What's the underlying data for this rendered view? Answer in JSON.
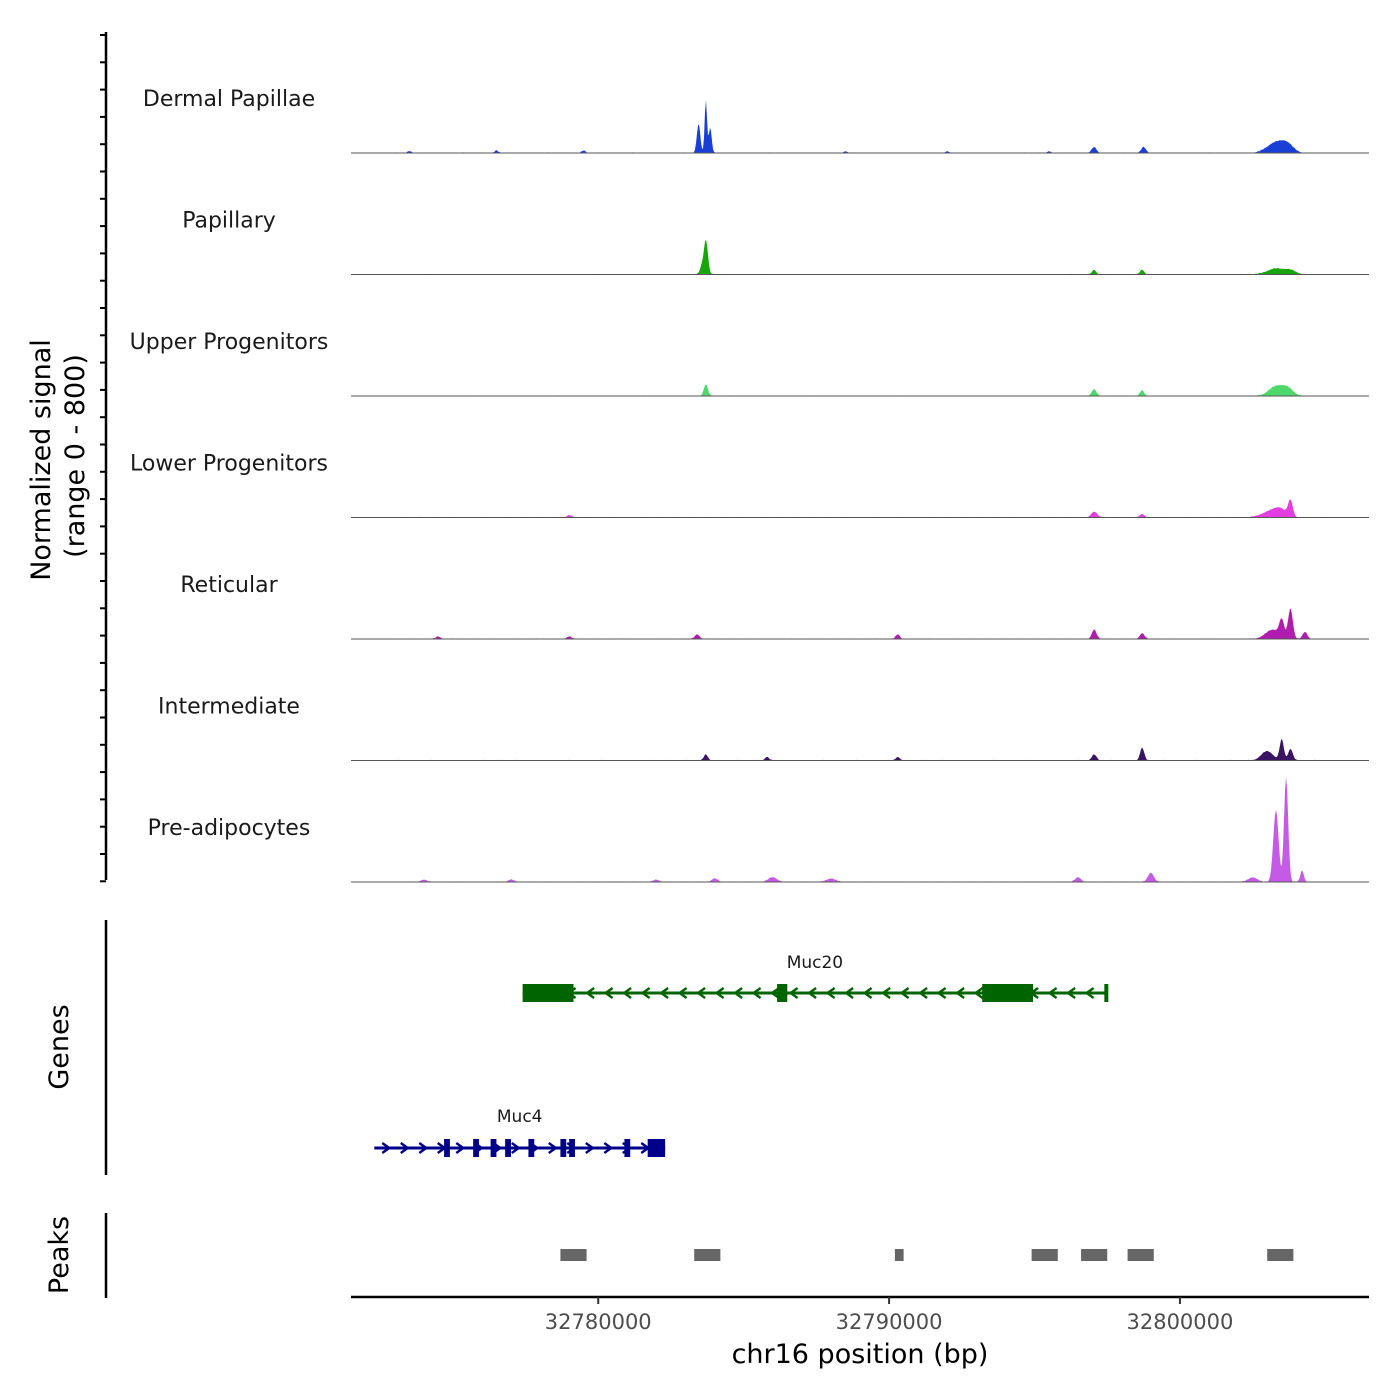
{
  "chart_data": {
    "type": "area",
    "title": "",
    "chromosome": "chr16",
    "xlabel": "chr16 position (bp)",
    "xlim": [
      32771500,
      32806500
    ],
    "x_ticks": [
      32780000,
      32790000,
      32800000
    ],
    "x_tick_labels": [
      "32780000",
      "32790000",
      "32800000"
    ],
    "signal_ylabel": "Normalized signal",
    "signal_ylabel_range": "(range 0 - 800)",
    "signal_ylim": [
      0,
      800
    ],
    "genes_label": "Genes",
    "peaks_label": "Peaks",
    "tracks": [
      {
        "name": "Dermal Papillae",
        "color": "#1a3fd6",
        "peaks": [
          [
            32783450,
            0.25,
            60
          ],
          [
            32783700,
            0.46,
            40
          ],
          [
            32783850,
            0.22,
            50
          ],
          [
            32797050,
            0.05,
            80
          ],
          [
            32798750,
            0.05,
            80
          ],
          [
            32803300,
            0.09,
            300
          ],
          [
            32803700,
            0.06,
            200
          ],
          [
            32776500,
            0.02,
            60
          ],
          [
            32779500,
            0.02,
            60
          ],
          [
            32788500,
            0.015,
            60
          ],
          [
            32792000,
            0.015,
            60
          ],
          [
            32795500,
            0.015,
            60
          ],
          [
            32773500,
            0.015,
            60
          ]
        ]
      },
      {
        "name": "Papillary",
        "color": "#17a60a",
        "peaks": [
          [
            32783700,
            0.3,
            70
          ],
          [
            32783550,
            0.06,
            60
          ],
          [
            32797050,
            0.04,
            70
          ],
          [
            32798700,
            0.04,
            70
          ],
          [
            32803300,
            0.05,
            300
          ],
          [
            32803800,
            0.03,
            200
          ]
        ]
      },
      {
        "name": "Upper Progenitors",
        "color": "#4fd96a",
        "peaks": [
          [
            32783700,
            0.1,
            70
          ],
          [
            32797050,
            0.06,
            80
          ],
          [
            32798700,
            0.05,
            70
          ],
          [
            32803300,
            0.08,
            250
          ],
          [
            32803700,
            0.06,
            200
          ]
        ]
      },
      {
        "name": "Lower Progenitors",
        "color": "#e23ee0",
        "peaks": [
          [
            32779000,
            0.02,
            80
          ],
          [
            32797050,
            0.05,
            100
          ],
          [
            32798700,
            0.03,
            80
          ],
          [
            32803100,
            0.05,
            300
          ],
          [
            32803800,
            0.14,
            80
          ],
          [
            32803450,
            0.06,
            200
          ]
        ]
      },
      {
        "name": "Reticular",
        "color": "#b01cae",
        "peaks": [
          [
            32774500,
            0.02,
            80
          ],
          [
            32779000,
            0.02,
            80
          ],
          [
            32783400,
            0.04,
            80
          ],
          [
            32790300,
            0.04,
            70
          ],
          [
            32797050,
            0.08,
            80
          ],
          [
            32798700,
            0.05,
            80
          ],
          [
            32803200,
            0.08,
            250
          ],
          [
            32803500,
            0.14,
            80
          ],
          [
            32803800,
            0.26,
            80
          ],
          [
            32804300,
            0.06,
            80
          ]
        ]
      },
      {
        "name": "Intermediate",
        "color": "#3a1462",
        "peaks": [
          [
            32783700,
            0.05,
            70
          ],
          [
            32785800,
            0.03,
            70
          ],
          [
            32790300,
            0.03,
            70
          ],
          [
            32797050,
            0.05,
            80
          ],
          [
            32798700,
            0.11,
            70
          ],
          [
            32803000,
            0.08,
            200
          ],
          [
            32803500,
            0.18,
            70
          ],
          [
            32803800,
            0.1,
            80
          ]
        ]
      },
      {
        "name": "Pre-adipocytes",
        "color": "#c55ae6",
        "peaks": [
          [
            32803300,
            0.62,
            90
          ],
          [
            32803650,
            0.91,
            70
          ],
          [
            32799000,
            0.08,
            100
          ],
          [
            32796500,
            0.04,
            100
          ],
          [
            32786000,
            0.04,
            150
          ],
          [
            32788000,
            0.03,
            150
          ],
          [
            32784000,
            0.03,
            100
          ],
          [
            32774000,
            0.02,
            100
          ],
          [
            32777000,
            0.02,
            100
          ],
          [
            32782000,
            0.02,
            100
          ],
          [
            32804200,
            0.1,
            60
          ],
          [
            32802500,
            0.04,
            150
          ]
        ]
      }
    ],
    "genes": [
      {
        "name": "Muc20",
        "color": "#006400",
        "strand": "-",
        "start": 32777400,
        "end": 32797500,
        "exons": [
          [
            32777400,
            32779150
          ],
          [
            32786150,
            32786500
          ],
          [
            32793200,
            32794950
          ],
          [
            32797400,
            32797500
          ]
        ]
      },
      {
        "name": "Muc4",
        "color": "#00008b",
        "strand": "+",
        "start": 32772300,
        "end": 32782300,
        "exons": [
          [
            32774700,
            32774900
          ],
          [
            32775700,
            32775900
          ],
          [
            32776300,
            32776500
          ],
          [
            32776800,
            32777000
          ],
          [
            32777600,
            32777800
          ],
          [
            32778700,
            32778900
          ],
          [
            32779000,
            32779200
          ],
          [
            32780900,
            32781100
          ],
          [
            32781700,
            32782300
          ]
        ]
      }
    ],
    "peak_regions": [
      [
        32778700,
        32779600
      ],
      [
        32783300,
        32784200
      ],
      [
        32790200,
        32790500
      ],
      [
        32794900,
        32795800
      ],
      [
        32796600,
        32797500
      ],
      [
        32798200,
        32799100
      ],
      [
        32803000,
        32803900
      ]
    ],
    "peak_color": "#666666"
  }
}
